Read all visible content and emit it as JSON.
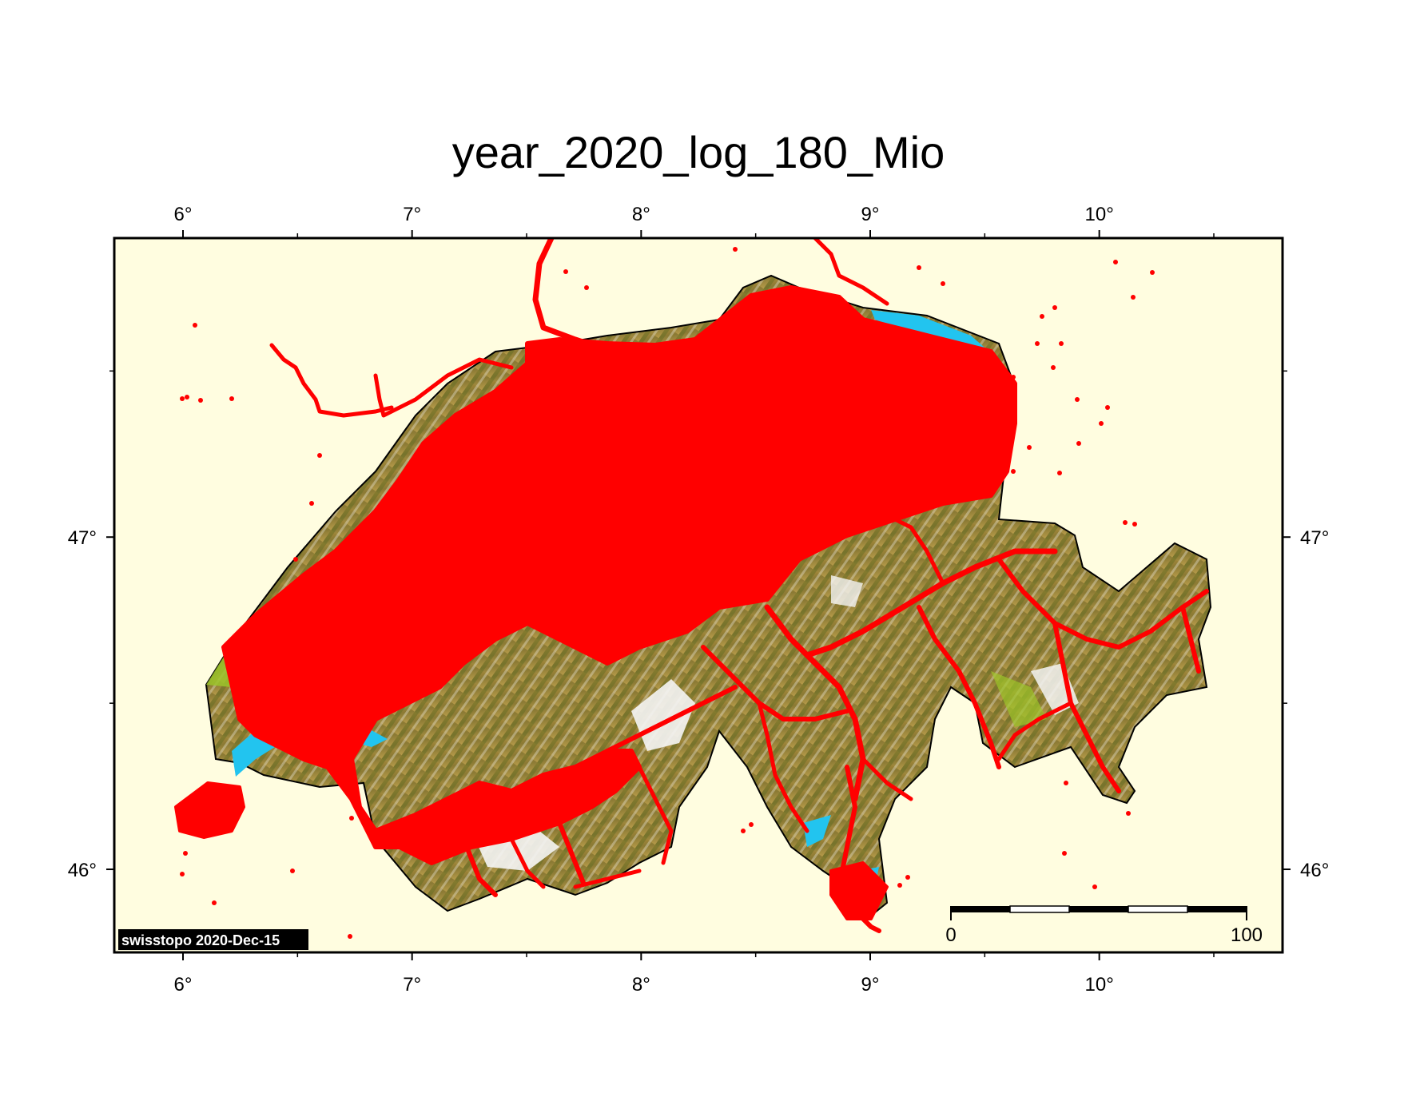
{
  "title": "year_2020_log_180_Mio",
  "map": {
    "background_color": "#fffde0",
    "lake_color": "#22c4ef",
    "track_color": "#ff0000",
    "lon_ticks": [
      {
        "label": "6°",
        "value": 6
      },
      {
        "label": "7°",
        "value": 7
      },
      {
        "label": "8°",
        "value": 8
      },
      {
        "label": "9°",
        "value": 9
      },
      {
        "label": "10°",
        "value": 10
      }
    ],
    "lat_ticks": [
      {
        "label": "47°",
        "value": 47
      },
      {
        "label": "46°",
        "value": 46
      }
    ],
    "lon_range": [
      5.7,
      10.8
    ],
    "lat_range": [
      45.75,
      47.9
    ]
  },
  "stamp": "swisstopo 2020-Dec-15",
  "scale_bar": {
    "start_label": "0",
    "end_label": "100"
  }
}
